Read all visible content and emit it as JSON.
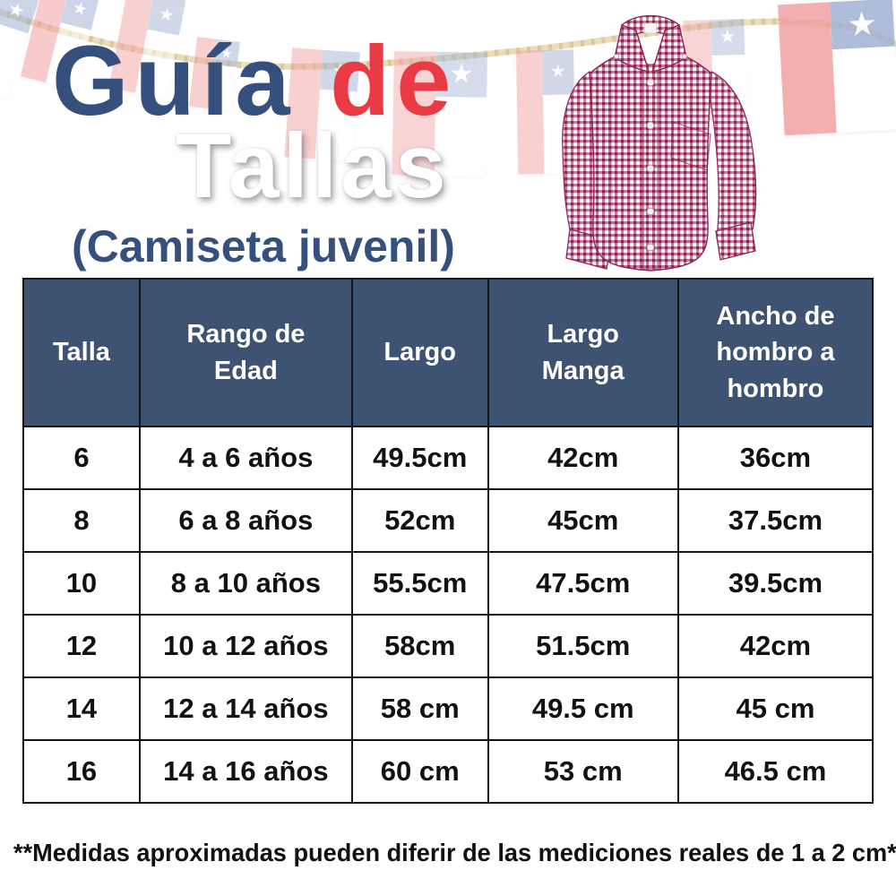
{
  "title": {
    "word1": "Guía",
    "word2": "de",
    "line2": "Tallas",
    "subtitle": "(Camiseta juvenil)"
  },
  "icons": {
    "star": "★"
  },
  "colors": {
    "navy": "#36507d",
    "red": "#e93a45",
    "header_bg": "#3e5271",
    "header_text": "#ffffff",
    "cell_text": "#121212",
    "border": "#141414",
    "footnote": "#111111",
    "flag_red": "#f2a2a3",
    "flag_blue": "#a3b2d4",
    "flag_star": "#ffffff",
    "rope": "#e9ddbb",
    "rope_twist": "#d2c28f",
    "shirt_check": "#b24575",
    "shirt_check_dark": "#8e2355"
  },
  "table": {
    "headers": [
      "Talla",
      "Rango de Edad",
      "Largo",
      "Largo Manga",
      "Ancho de hombro a hombro"
    ],
    "rows": [
      [
        "6",
        "4 a 6 años",
        "49.5cm",
        "42cm",
        "36cm"
      ],
      [
        "8",
        "6 a 8 años",
        "52cm",
        "45cm",
        "37.5cm"
      ],
      [
        "10",
        "8 a 10 años",
        "55.5cm",
        "47.5cm",
        "39.5cm"
      ],
      [
        "12",
        "10 a 12 años",
        "58cm",
        "51.5cm",
        "42cm"
      ],
      [
        "14",
        "12 a 14 años",
        "58 cm",
        "49.5 cm",
        "45 cm"
      ],
      [
        "16",
        "14 a 16 años",
        "60 cm",
        "53 cm",
        "46.5 cm"
      ]
    ]
  },
  "footnote": "**Medidas aproximadas pueden diferir de las mediciones reales de 1 a 2 cm**"
}
